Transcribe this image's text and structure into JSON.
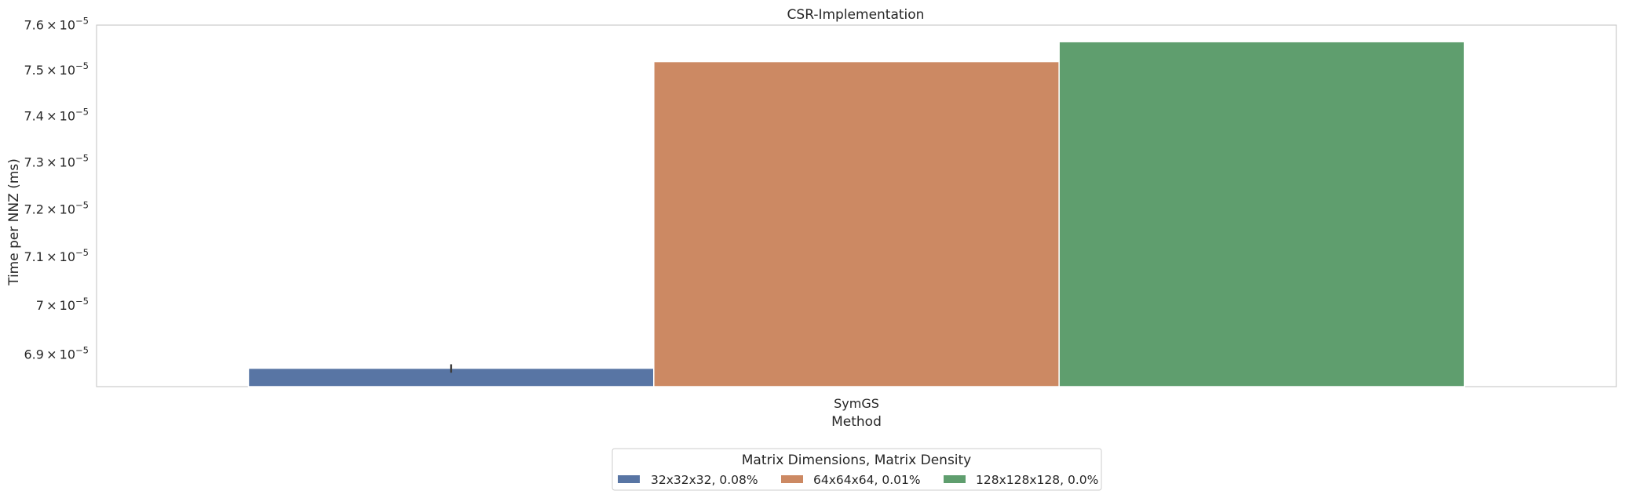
{
  "chart_data": {
    "type": "bar",
    "title": "CSR-Implementation",
    "xlabel": "Method",
    "ylabel": "Time per NNZ (ms)",
    "categories": [
      "SymGS"
    ],
    "yscale": "log",
    "ylim": [
      6.835e-05,
      7.6e-05
    ],
    "yticks": [
      {
        "value": 6.9e-05,
        "mantissa": "6.9",
        "base": "10",
        "exp": "−5"
      },
      {
        "value": 7e-05,
        "mantissa": "7",
        "base": "10",
        "exp": "−5"
      },
      {
        "value": 7.1e-05,
        "mantissa": "7.1",
        "base": "10",
        "exp": "−5"
      },
      {
        "value": 7.2e-05,
        "mantissa": "7.2",
        "base": "10",
        "exp": "−5"
      },
      {
        "value": 7.3e-05,
        "mantissa": "7.3",
        "base": "10",
        "exp": "−5"
      },
      {
        "value": 7.4e-05,
        "mantissa": "7.4",
        "base": "10",
        "exp": "−5"
      },
      {
        "value": 7.5e-05,
        "mantissa": "7.5",
        "base": "10",
        "exp": "−5"
      },
      {
        "value": 7.6e-05,
        "mantissa": "7.6",
        "base": "10",
        "exp": "−5"
      }
    ],
    "series": [
      {
        "name": "32x32x32, 0.08%",
        "values": [
          6.872e-05
        ],
        "error": [
          6.863e-05,
          6.88e-05
        ],
        "color": "#5875a4"
      },
      {
        "name": "64x64x64, 0.01%",
        "values": [
          7.519e-05
        ],
        "color": "#cc8963"
      },
      {
        "name": "128x128x128, 0.0%",
        "values": [
          7.563e-05
        ],
        "color": "#5f9e6e"
      }
    ],
    "legend": {
      "title": "Matrix Dimensions, Matrix Density",
      "placement": "below-center",
      "ncol": 3
    },
    "grid": false,
    "frame_color": "#cccccc"
  }
}
